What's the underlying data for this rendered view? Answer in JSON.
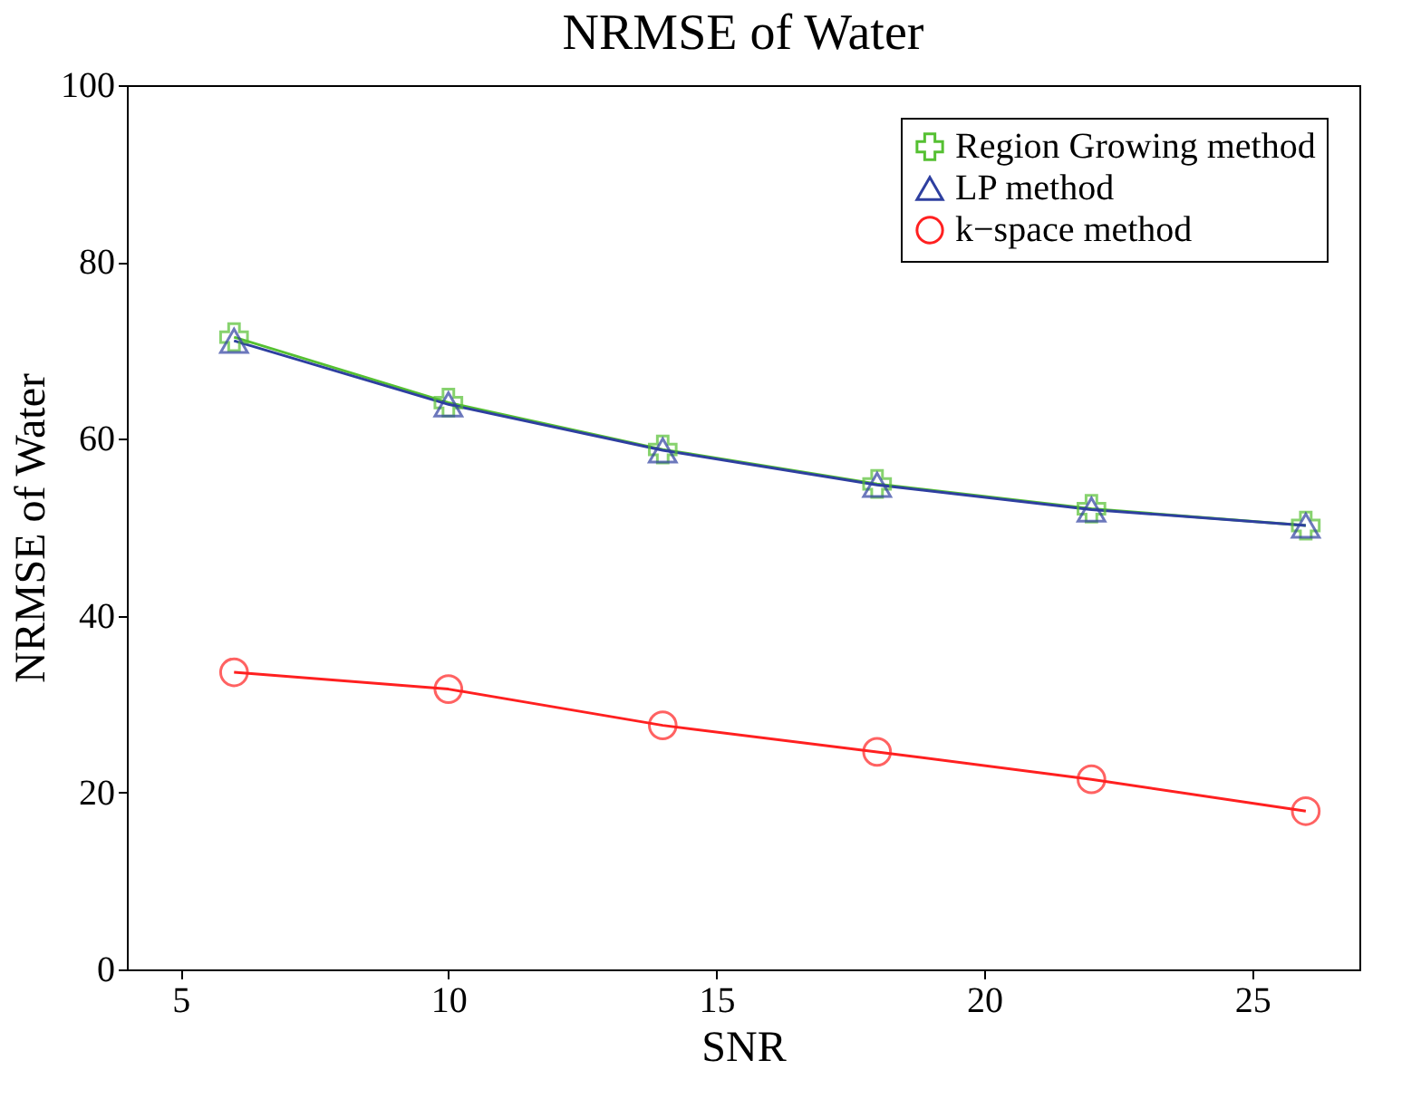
{
  "chart_data": {
    "type": "line",
    "title": "NRMSE of Water",
    "xlabel": "SNR",
    "ylabel": "NRMSE of Water",
    "x": [
      6,
      10,
      14,
      18,
      22,
      26
    ],
    "series": [
      {
        "name": "Region Growing method",
        "color": "#55c032",
        "marker": "cross",
        "values": [
          71.5,
          64.1,
          58.8,
          54.9,
          52.1,
          50.2
        ]
      },
      {
        "name": "LP method",
        "color": "#2e3fa0",
        "marker": "triangle",
        "values": [
          71.1,
          63.9,
          58.7,
          54.8,
          52.0,
          50.2
        ]
      },
      {
        "name": "k−space method",
        "color": "#ff2020",
        "marker": "circle",
        "values": [
          33.6,
          31.7,
          27.6,
          24.6,
          21.5,
          17.9
        ]
      }
    ],
    "xlim": [
      4,
      27
    ],
    "xticks": [
      5,
      10,
      15,
      20,
      25
    ],
    "ylim": [
      0,
      100
    ],
    "yticks": [
      0,
      20,
      40,
      60,
      80,
      100
    ],
    "grid": false,
    "legend": "top right",
    "line_style": "solid"
  }
}
